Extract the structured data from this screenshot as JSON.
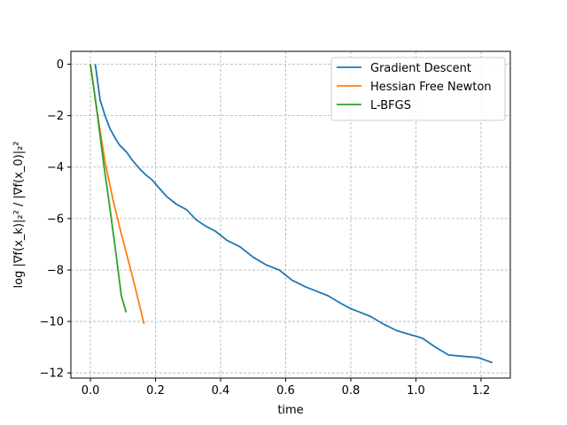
{
  "chart_data": {
    "type": "line",
    "xlabel": "time",
    "ylabel": "log |∇f(x_k)|₂² / |∇f(x_0)|₂²",
    "xlim": [
      -0.06,
      1.29
    ],
    "ylim": [
      -12.2,
      0.5
    ],
    "xticks": [
      0.0,
      0.2,
      0.4,
      0.6,
      0.8,
      1.0,
      1.2
    ],
    "xtick_labels": [
      "0.0",
      "0.2",
      "0.4",
      "0.6",
      "0.8",
      "1.0",
      "1.2"
    ],
    "yticks": [
      0,
      -2,
      -4,
      -6,
      -8,
      -10,
      -12
    ],
    "ytick_labels": [
      "0",
      "−2",
      "−4",
      "−6",
      "−8",
      "−10",
      "−12"
    ],
    "grid": true,
    "legend_position": "top-right",
    "series": [
      {
        "name": "Gradient Descent",
        "color": "#1f77b4",
        "x": [
          0.015,
          0.03,
          0.045,
          0.06,
          0.075,
          0.09,
          0.11,
          0.13,
          0.15,
          0.17,
          0.19,
          0.21,
          0.235,
          0.265,
          0.295,
          0.325,
          0.355,
          0.385,
          0.42,
          0.46,
          0.5,
          0.54,
          0.58,
          0.62,
          0.66,
          0.7,
          0.73,
          0.77,
          0.8,
          0.83,
          0.86,
          0.9,
          0.94,
          0.98,
          1.02,
          1.06,
          1.1,
          1.14,
          1.19,
          1.235
        ],
        "y": [
          0.0,
          -1.4,
          -2.0,
          -2.5,
          -2.85,
          -3.15,
          -3.4,
          -3.75,
          -4.05,
          -4.3,
          -4.5,
          -4.8,
          -5.15,
          -5.45,
          -5.65,
          -6.05,
          -6.3,
          -6.5,
          -6.85,
          -7.1,
          -7.5,
          -7.8,
          -8.0,
          -8.4,
          -8.65,
          -8.85,
          -9.0,
          -9.3,
          -9.5,
          -9.65,
          -9.8,
          -10.1,
          -10.35,
          -10.5,
          -10.65,
          -11.0,
          -11.3,
          -11.35,
          -11.4,
          -11.6
        ]
      },
      {
        "name": "Hessian Free Newton",
        "color": "#ff7f0e",
        "x": [
          0.0,
          0.02,
          0.045,
          0.07,
          0.095,
          0.12,
          0.14,
          0.165
        ],
        "y": [
          0.0,
          -1.8,
          -3.8,
          -5.3,
          -6.6,
          -7.8,
          -8.8,
          -10.1
        ]
      },
      {
        "name": "L-BFGS",
        "color": "#2ca02c",
        "x": [
          0.0,
          0.02,
          0.04,
          0.06,
          0.08,
          0.095,
          0.11
        ],
        "y": [
          0.0,
          -1.8,
          -3.8,
          -5.6,
          -7.5,
          -9.0,
          -9.65
        ]
      }
    ]
  }
}
